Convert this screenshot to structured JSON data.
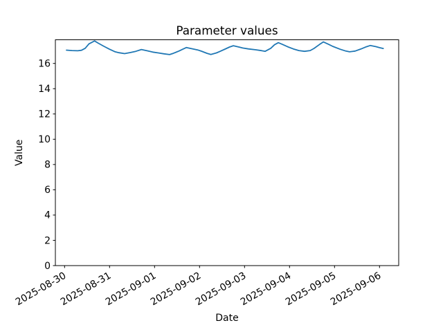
{
  "figure": {
    "background": "#ffffff"
  },
  "chart_data": {
    "type": "line",
    "title": "Parameter values",
    "xlabel": "Date",
    "ylabel": "Value",
    "series_color": "#1f77b4",
    "grid": false,
    "ylim": [
      0,
      17.87
    ],
    "yticks": [
      0,
      2,
      4,
      6,
      8,
      10,
      12,
      14,
      16
    ],
    "xtick_labels": [
      "2025-08-30",
      "2025-08-31",
      "2025-09-01",
      "2025-09-02",
      "2025-09-03",
      "2025-09-04",
      "2025-09-05",
      "2025-09-06"
    ],
    "x": [
      "2025-08-30T01:00",
      "2025-08-30T04:00",
      "2025-08-30T07:00",
      "2025-08-30T09:00",
      "2025-08-30T11:00",
      "2025-08-30T13:00",
      "2025-08-30T16:00",
      "2025-08-30T18:00",
      "2025-08-30T21:00",
      "2025-08-31T00:00",
      "2025-08-31T03:00",
      "2025-08-31T05:00",
      "2025-08-31T08:00",
      "2025-08-31T11:00",
      "2025-08-31T14:00",
      "2025-08-31T17:00",
      "2025-08-31T20:00",
      "2025-08-31T23:00",
      "2025-09-01T02:00",
      "2025-09-01T05:00",
      "2025-09-01T08:00",
      "2025-09-01T10:00",
      "2025-09-01T13:00",
      "2025-09-01T15:00",
      "2025-09-01T17:00",
      "2025-09-01T20:00",
      "2025-09-01T23:00",
      "2025-09-02T01:00",
      "2025-09-02T04:00",
      "2025-09-02T06:00",
      "2025-09-02T09:00",
      "2025-09-02T11:00",
      "2025-09-02T14:00",
      "2025-09-02T16:00",
      "2025-09-02T18:00",
      "2025-09-02T21:00",
      "2025-09-02T23:00",
      "2025-09-03T02:00",
      "2025-09-03T06:00",
      "2025-09-03T09:00",
      "2025-09-03T11:00",
      "2025-09-03T14:00",
      "2025-09-03T16:00",
      "2025-09-03T18:00",
      "2025-09-03T20:00",
      "2025-09-03T23:00",
      "2025-09-04T02:00",
      "2025-09-04T05:00",
      "2025-09-04T08:00",
      "2025-09-04T11:00",
      "2025-09-04T13:00",
      "2025-09-04T16:00",
      "2025-09-04T18:00",
      "2025-09-04T21:00",
      "2025-09-04T23:00",
      "2025-09-05T03:00",
      "2025-09-05T06:00",
      "2025-09-05T08:00",
      "2025-09-05T11:00",
      "2025-09-05T14:00",
      "2025-09-05T17:00",
      "2025-09-05T19:00",
      "2025-09-05T22:00",
      "2025-09-06T00:00",
      "2025-09-06T02:00"
    ],
    "y": [
      17.05,
      17.02,
      17.0,
      17.04,
      17.2,
      17.55,
      17.78,
      17.6,
      17.35,
      17.12,
      16.92,
      16.85,
      16.78,
      16.86,
      16.96,
      17.1,
      17.0,
      16.9,
      16.83,
      16.76,
      16.7,
      16.8,
      16.98,
      17.12,
      17.26,
      17.16,
      17.07,
      16.97,
      16.8,
      16.71,
      16.83,
      16.96,
      17.16,
      17.3,
      17.4,
      17.3,
      17.22,
      17.15,
      17.08,
      17.01,
      16.96,
      17.2,
      17.48,
      17.64,
      17.52,
      17.32,
      17.15,
      17.02,
      16.96,
      17.02,
      17.18,
      17.5,
      17.7,
      17.5,
      17.35,
      17.12,
      16.98,
      16.92,
      16.98,
      17.14,
      17.32,
      17.42,
      17.33,
      17.25,
      17.18
    ]
  }
}
